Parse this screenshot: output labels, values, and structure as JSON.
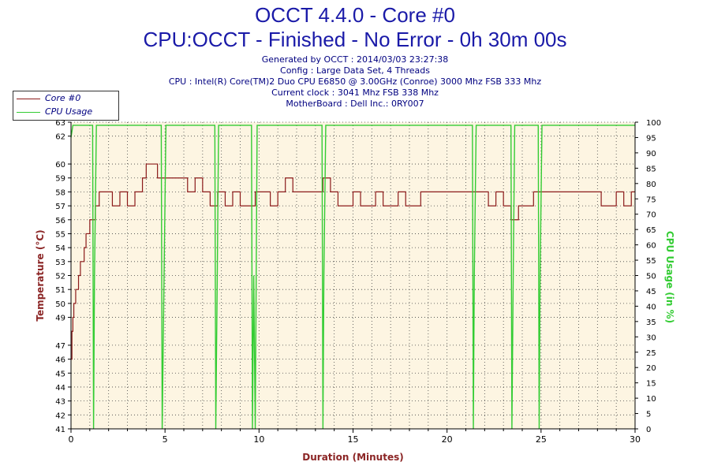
{
  "header": {
    "title": "OCCT 4.4.0 - Core #0",
    "subtitle": "CPU:OCCT - Finished - No Error - 0h 30m 00s",
    "info_lines": [
      "Generated by OCCT : 2014/03/03 23:27:38",
      "Config : Large Data Set, 4 Threads",
      "CPU : Intel(R) Core(TM)2 Duo CPU E6850 @ 3.00GHz (Conroe) 3000 Mhz FSB 333 Mhz",
      "Current clock : 3041 Mhz FSB 338 Mhz",
      "MotherBoard : Dell Inc.: 0RY007"
    ]
  },
  "colors": {
    "temperature": "#8b1a1a",
    "cpu_usage": "#33cc33",
    "plot_bg": "#fdf5e2",
    "title": "#1a1aa8",
    "axis_label_left": "#8b2525",
    "axis_label_right": "#33cc33",
    "xlabel": "#8b2525"
  },
  "chart_data": {
    "type": "line",
    "xlabel": "Duration (Minutes)",
    "ylabel": "Temperature (°C)",
    "y2label": "CPU Usage (in %)",
    "xlim": [
      0,
      30
    ],
    "ylim": [
      41,
      63
    ],
    "y2lim": [
      0,
      100
    ],
    "x_ticks": [
      0,
      5,
      10,
      15,
      20,
      25,
      30
    ],
    "y_ticks": [
      41,
      42,
      43,
      44,
      45,
      46,
      47,
      49,
      50,
      51,
      52,
      53,
      54,
      55,
      56,
      57,
      58,
      59,
      60,
      62,
      63
    ],
    "y2_ticks": [
      0,
      5,
      10,
      15,
      20,
      25,
      30,
      35,
      40,
      45,
      50,
      55,
      60,
      65,
      70,
      75,
      80,
      85,
      90,
      95,
      100
    ],
    "grid": true,
    "legend_position": "top-left",
    "series": [
      {
        "name": "Core #0",
        "axis": "left",
        "x": [
          0,
          0.05,
          0.1,
          0.15,
          0.25,
          0.4,
          0.5,
          0.7,
          0.8,
          0.9,
          1.0,
          1.15,
          1.3,
          1.5,
          1.8,
          2.2,
          2.6,
          3.0,
          3.4,
          3.8,
          4.0,
          4.2,
          4.4,
          4.6,
          4.8,
          5.0,
          5.4,
          5.8,
          6.2,
          6.6,
          7.0,
          7.4,
          7.8,
          8.2,
          8.6,
          9.0,
          9.4,
          9.8,
          10.2,
          10.6,
          11.0,
          11.4,
          11.8,
          12.2,
          12.6,
          13.0,
          13.4,
          13.8,
          14.2,
          14.6,
          15.0,
          15.4,
          15.8,
          16.2,
          16.6,
          17.0,
          17.4,
          17.8,
          18.2,
          18.6,
          19.0,
          19.4,
          19.8,
          20.2,
          20.6,
          21.0,
          21.4,
          21.8,
          22.2,
          22.6,
          23.0,
          23.4,
          23.8,
          24.2,
          24.6,
          25.0,
          25.4,
          25.8,
          26.2,
          26.6,
          27.0,
          27.4,
          27.8,
          28.2,
          28.6,
          29.0,
          29.4,
          29.8,
          30.0
        ],
        "values": [
          46,
          48,
          49,
          50,
          51,
          52,
          53,
          54,
          55,
          55,
          56,
          56,
          57,
          58,
          58,
          57,
          58,
          57,
          58,
          59,
          60,
          60,
          60,
          59,
          59,
          59,
          59,
          59,
          58,
          59,
          58,
          57,
          58,
          57,
          58,
          57,
          57,
          58,
          58,
          57,
          58,
          59,
          58,
          58,
          58,
          58,
          59,
          58,
          57,
          57,
          58,
          57,
          57,
          58,
          57,
          57,
          58,
          57,
          57,
          58,
          58,
          58,
          58,
          58,
          58,
          58,
          58,
          58,
          57,
          58,
          57,
          56,
          57,
          57,
          58,
          58,
          58,
          58,
          58,
          58,
          58,
          58,
          58,
          57,
          57,
          58,
          57,
          58,
          58
        ]
      },
      {
        "name": "CPU Usage",
        "axis": "right",
        "x": [
          0,
          0.1,
          1.15,
          1.2,
          1.25,
          1.35,
          4.8,
          4.85,
          4.95,
          5.05,
          7.65,
          7.7,
          7.78,
          7.85,
          9.6,
          9.65,
          9.72,
          9.8,
          9.9,
          13.35,
          13.4,
          13.45,
          13.55,
          21.35,
          21.4,
          21.45,
          21.55,
          23.4,
          23.45,
          23.52,
          23.6,
          24.85,
          24.9,
          24.95,
          25.05,
          30
        ],
        "values": [
          95,
          99,
          99,
          0,
          50,
          99,
          99,
          0,
          50,
          99,
          99,
          0,
          50,
          99,
          99,
          0,
          50,
          0,
          99,
          99,
          0,
          50,
          99,
          99,
          0,
          50,
          99,
          99,
          0,
          50,
          99,
          99,
          0,
          50,
          99,
          99
        ]
      }
    ]
  }
}
